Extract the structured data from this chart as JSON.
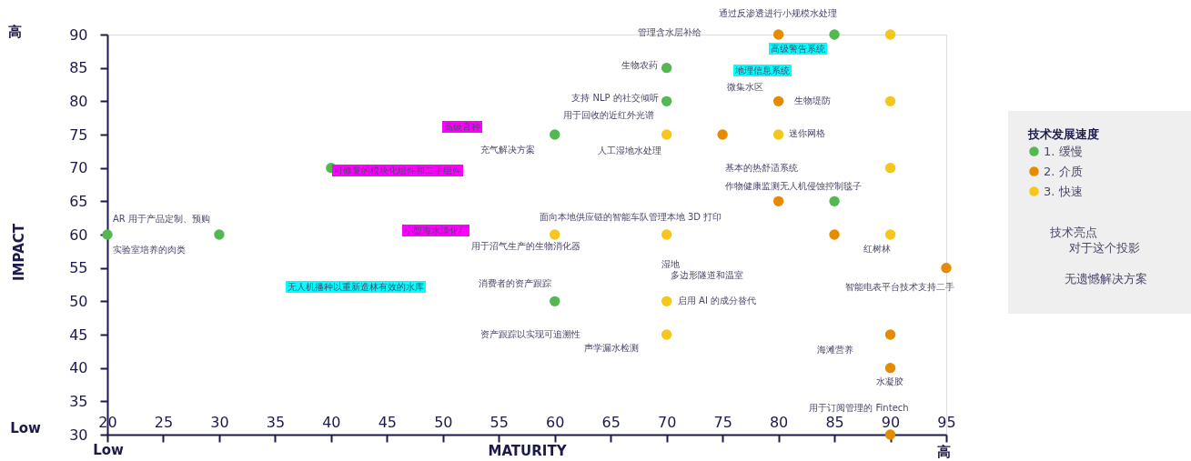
{
  "chart_data": {
    "type": "scatter",
    "xlabel": "MATURITY",
    "ylabel": "IMPACT",
    "legend_title": "技术发展速度",
    "legend": "right",
    "grid": false,
    "marker": "circle",
    "xlim": [
      20,
      95
    ],
    "xticks": [
      20,
      25,
      30,
      35,
      40,
      45,
      50,
      55,
      60,
      65,
      70,
      75,
      80,
      85,
      90,
      95
    ],
    "ylim": [
      30,
      90
    ],
    "yticks": [
      30,
      35,
      40,
      45,
      50,
      55,
      60,
      65,
      70,
      75,
      80,
      85,
      90
    ],
    "series": [
      {
        "name": "1. 缓慢",
        "color": "#52b84f",
        "x": [
          20,
          30,
          40,
          60,
          60,
          70,
          70,
          85,
          85
        ],
        "values": [
          60,
          60,
          70,
          75,
          50,
          85,
          80,
          90,
          65
        ]
      },
      {
        "name": "2. 介质",
        "color": "#e68a00",
        "x": [
          80,
          80,
          75,
          80,
          85,
          95,
          90,
          90,
          90
        ],
        "values": [
          90,
          80,
          75,
          65,
          60,
          55,
          45,
          40,
          30
        ]
      },
      {
        "name": "3. 快速",
        "color": "#f6c61a",
        "x": [
          90,
          90,
          70,
          80,
          90,
          60,
          70,
          90,
          70,
          70
        ],
        "values": [
          90,
          80,
          75,
          75,
          70,
          60,
          60,
          60,
          50,
          45
        ]
      }
    ],
    "annotations": [
      "高",
      "Low",
      "Low",
      "高",
      "技术亮点",
      "对于这个投影",
      "无遗憾解决方案",
      "通过反渗透进行小规模水处理",
      "管理含水层补给",
      "高级警告系统",
      "生物农药",
      "地理信息系统",
      "微集水区",
      "支持 NLP 的社交倾听",
      "生物堤防",
      "用于回收的近红外光谱",
      "高级育种",
      "迷你网格",
      "充气解决方案",
      "人工湿地水处理",
      "可修复的模块化组件和二手组件",
      "基本的热舒适系统",
      "作物健康监测无人机侵蚀控制毯子",
      "AR 用于产品定制、预购",
      "面向本地供应链的智能车队管理本地 3D 打印",
      "小型海水淡化厂",
      "实验室培养的肉类",
      "用于沼气生产的生物消化器",
      "红树林",
      "湿地",
      "多边形隧道和温室",
      "消费者的资产跟踪",
      "无人机播种以重新造林有效的水库",
      "智能电表平台技术支持二手",
      "启用 AI 的成分替代",
      "资产跟踪以实现可追溯性",
      "声学漏水检测",
      "海滩营养",
      "水凝胶",
      "用于订阅管理的 Fintech"
    ]
  }
}
